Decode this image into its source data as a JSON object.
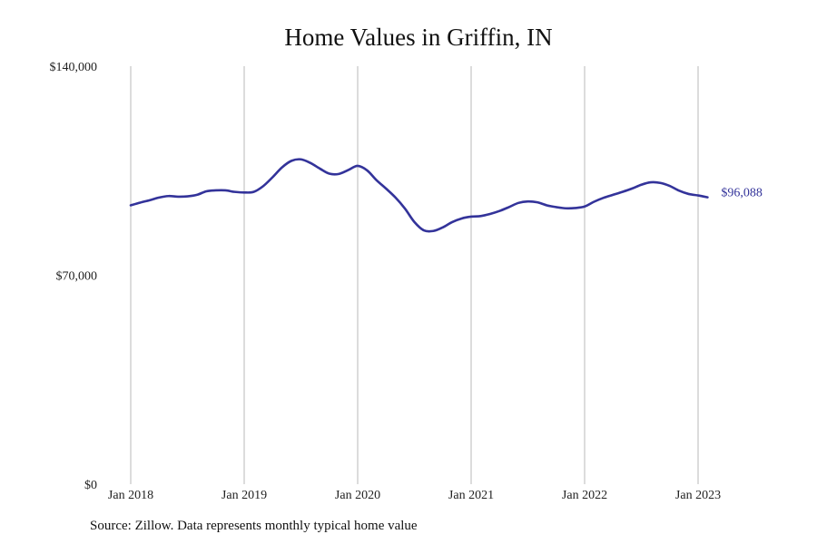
{
  "chart_data": {
    "type": "line",
    "title": "Home Values in Griffin, IN",
    "xlabel": "",
    "ylabel": "",
    "ylim": [
      0,
      140000
    ],
    "y_ticks": [
      {
        "value": 0,
        "label": "$0"
      },
      {
        "value": 70000,
        "label": "$70,000"
      },
      {
        "value": 140000,
        "label": "$140,000"
      }
    ],
    "x_ticks": [
      {
        "value": "2018-01",
        "label": "Jan 2018"
      },
      {
        "value": "2019-01",
        "label": "Jan 2019"
      },
      {
        "value": "2020-01",
        "label": "Jan 2020"
      },
      {
        "value": "2021-01",
        "label": "Jan 2021"
      },
      {
        "value": "2022-01",
        "label": "Jan 2022"
      },
      {
        "value": "2023-01",
        "label": "Jan 2023"
      }
    ],
    "xlim": [
      "2018-01",
      "2023-03"
    ],
    "grid": {
      "vertical": true,
      "horizontal": false
    },
    "series": [
      {
        "color": "#33339a",
        "x": [
          "2018-01",
          "2018-02",
          "2018-03",
          "2018-04",
          "2018-05",
          "2018-06",
          "2018-07",
          "2018-08",
          "2018-09",
          "2018-10",
          "2018-11",
          "2018-12",
          "2019-01",
          "2019-02",
          "2019-03",
          "2019-04",
          "2019-05",
          "2019-06",
          "2019-07",
          "2019-08",
          "2019-09",
          "2019-10",
          "2019-11",
          "2019-12",
          "2020-01",
          "2020-02",
          "2020-03",
          "2020-04",
          "2020-05",
          "2020-06",
          "2020-07",
          "2020-08",
          "2020-09",
          "2020-10",
          "2020-11",
          "2020-12",
          "2021-01",
          "2021-02",
          "2021-03",
          "2021-04",
          "2021-05",
          "2021-06",
          "2021-07",
          "2021-08",
          "2021-09",
          "2021-10",
          "2021-11",
          "2021-12",
          "2022-01",
          "2022-02",
          "2022-03",
          "2022-04",
          "2022-05",
          "2022-06",
          "2022-07",
          "2022-08",
          "2022-09",
          "2022-10",
          "2022-11",
          "2022-12",
          "2023-01",
          "2023-02"
        ],
        "values": [
          93400,
          94300,
          95100,
          96000,
          96500,
          96300,
          96400,
          96900,
          98100,
          98400,
          98400,
          97900,
          97700,
          97900,
          99800,
          102800,
          106100,
          108300,
          108800,
          107600,
          105700,
          104000,
          103900,
          105200,
          106600,
          105100,
          101800,
          99000,
          96000,
          92300,
          87800,
          85000,
          84800,
          86000,
          87800,
          89000,
          89600,
          89800,
          90500,
          91500,
          92800,
          94200,
          94700,
          94400,
          93400,
          92800,
          92400,
          92500,
          93000,
          94600,
          95900,
          96900,
          97900,
          99000,
          100300,
          101100,
          100900,
          99900,
          98300,
          97200,
          96700,
          96088
        ],
        "end_label": "$96,088"
      }
    ]
  },
  "source_note": "Source: Zillow. Data represents monthly typical home value"
}
